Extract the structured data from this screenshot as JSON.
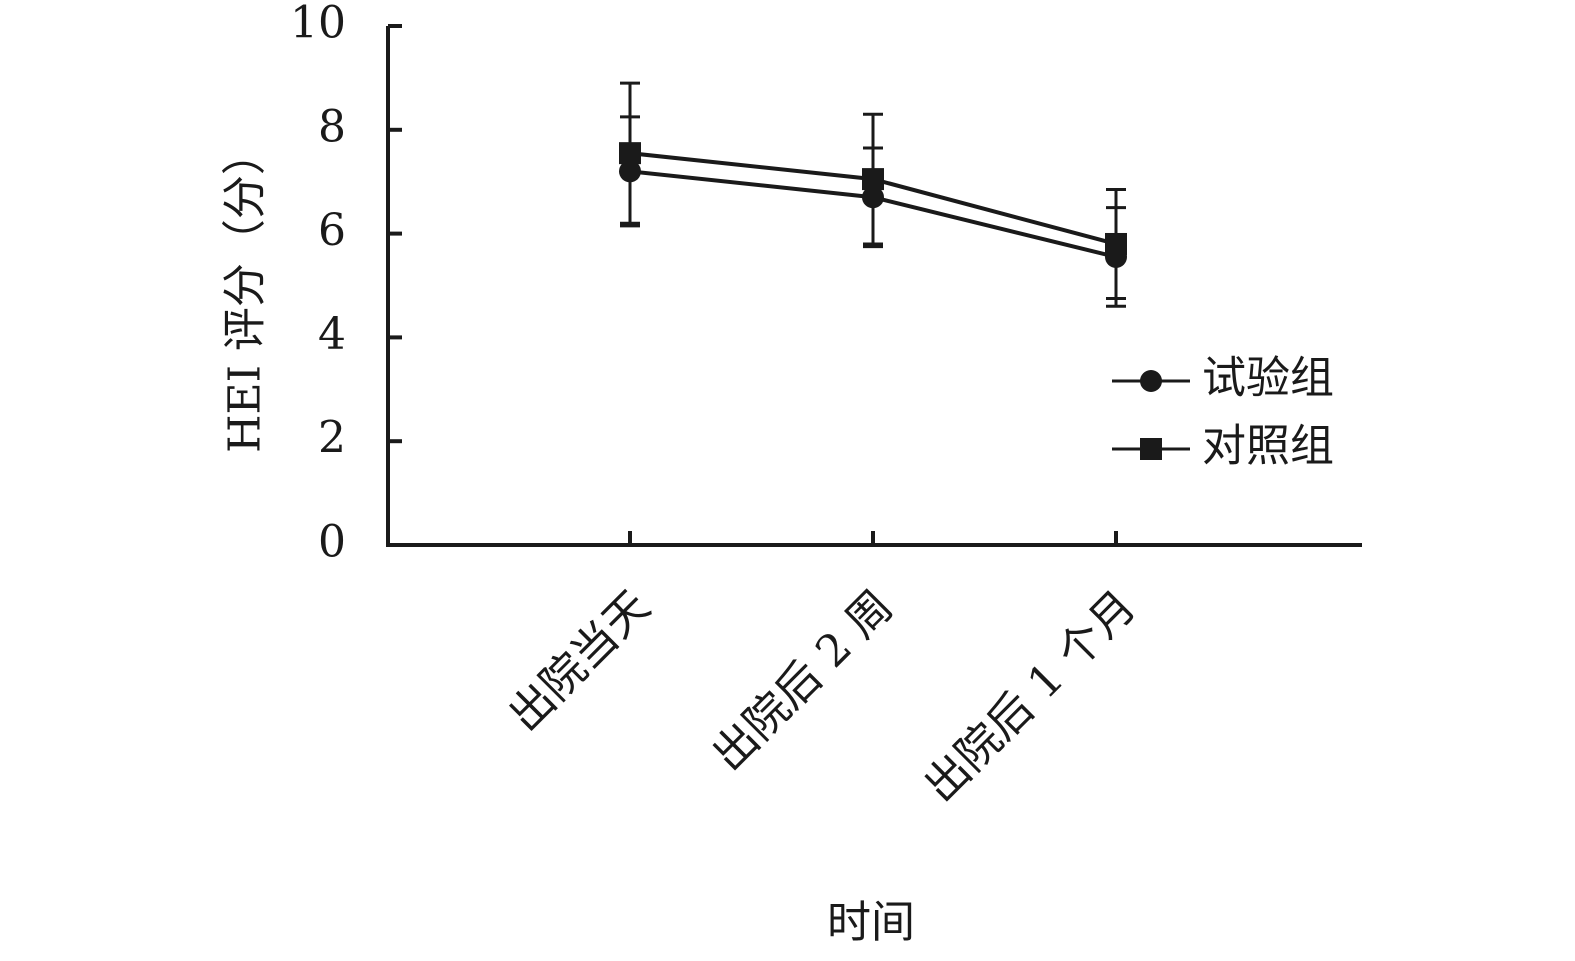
{
  "chart_data": {
    "type": "line",
    "title": "",
    "xlabel": "时间",
    "ylabel": "HEI 评分（分）",
    "ylim": [
      0,
      10
    ],
    "yticks": [
      0,
      2,
      4,
      6,
      8,
      10
    ],
    "categories": [
      "出院当天",
      "出院后 2 周",
      "出院后 1 个月"
    ],
    "grid": false,
    "legend_position": "right",
    "series": [
      {
        "name": "试验组",
        "marker": "circle",
        "color": "#1a1a1a",
        "values": [
          7.2,
          6.7,
          5.55
        ],
        "error": [
          1.05,
          0.95,
          0.95
        ]
      },
      {
        "name": "对照组",
        "marker": "square",
        "color": "#1a1a1a",
        "values": [
          7.55,
          7.05,
          5.8
        ],
        "error": [
          1.35,
          1.25,
          1.05
        ]
      }
    ]
  }
}
